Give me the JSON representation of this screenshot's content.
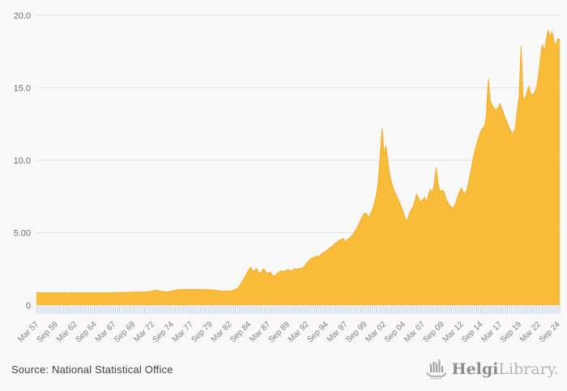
{
  "page": {
    "background": "#f9f9f9"
  },
  "footer": {
    "source_text": "Source: National Statistical Office",
    "logo": {
      "name_bold": "Helgi",
      "name_light": "Library.",
      "icon": "helgi-ship-bars-icon",
      "color": "#9b9b9b"
    }
  },
  "chart_data": {
    "type": "area",
    "title": "",
    "xlabel": "",
    "ylabel": "",
    "x_unit": "quarterly",
    "x_start": "Mar 1957",
    "x_end": "Dec 2024",
    "ylim": [
      0,
      20
    ],
    "grid": "horizontal",
    "legend": "none",
    "colors": {
      "area_fill": "#f9bc38",
      "area_edge": "#f5ab25",
      "gridline": "#e4e4e4",
      "baseline": "#dcdcdc",
      "quarter_tick": "#c8d2e6",
      "x_label": "#7d7d7d",
      "y_label": "#6e6e6e"
    },
    "y_ticks": [
      {
        "value": 0,
        "label": "0"
      },
      {
        "value": 5,
        "label": "5.00"
      },
      {
        "value": 10,
        "label": "10.0"
      },
      {
        "value": 15,
        "label": "15.0"
      },
      {
        "value": 20,
        "label": "20.0"
      }
    ],
    "x_tick_every_n_points": 10,
    "x_tick_labels": [
      "Mar 57",
      "Sep 59",
      "Mar 62",
      "Sep 64",
      "Mar 67",
      "Sep 69",
      "Mar 72",
      "Sep 74",
      "Mar 77",
      "Sep 79",
      "Mar 82",
      "Sep 84",
      "Mar 87",
      "Sep 89",
      "Mar 92",
      "Sep 94",
      "Mar 97",
      "Sep 99",
      "Mar 02",
      "Sep 04",
      "Mar 07",
      "Sep 09",
      "Mar 12",
      "Sep 14",
      "Mar 17",
      "Sep 19",
      "Mar 22",
      "Sep 24"
    ],
    "values": [
      0.85,
      0.85,
      0.85,
      0.86,
      0.85,
      0.84,
      0.85,
      0.85,
      0.86,
      0.85,
      0.85,
      0.84,
      0.85,
      0.86,
      0.85,
      0.85,
      0.84,
      0.85,
      0.85,
      0.86,
      0.85,
      0.85,
      0.86,
      0.85,
      0.84,
      0.85,
      0.86,
      0.85,
      0.85,
      0.86,
      0.85,
      0.84,
      0.85,
      0.85,
      0.86,
      0.86,
      0.85,
      0.85,
      0.86,
      0.86,
      0.87,
      0.87,
      0.88,
      0.88,
      0.88,
      0.88,
      0.89,
      0.89,
      0.88,
      0.89,
      0.9,
      0.9,
      0.89,
      0.9,
      0.9,
      0.91,
      0.9,
      0.91,
      0.92,
      0.95,
      1.0,
      1.02,
      1.03,
      1.0,
      0.97,
      0.95,
      0.93,
      0.92,
      0.93,
      0.95,
      0.97,
      1.0,
      1.04,
      1.07,
      1.08,
      1.07,
      1.08,
      1.08,
      1.07,
      1.08,
      1.08,
      1.09,
      1.08,
      1.08,
      1.07,
      1.08,
      1.08,
      1.07,
      1.07,
      1.06,
      1.06,
      1.05,
      1.04,
      1.02,
      1.0,
      0.98,
      0.97,
      0.96,
      0.97,
      0.97,
      0.98,
      0.99,
      1.02,
      1.08,
      1.15,
      1.3,
      1.5,
      1.72,
      1.95,
      2.2,
      2.45,
      2.62,
      2.3,
      2.42,
      2.52,
      2.28,
      2.2,
      2.42,
      2.48,
      2.25,
      2.15,
      2.3,
      2.1,
      1.97,
      2.1,
      2.22,
      2.32,
      2.38,
      2.3,
      2.36,
      2.45,
      2.4,
      2.35,
      2.45,
      2.52,
      2.48,
      2.55,
      2.5,
      2.6,
      2.7,
      2.9,
      3.05,
      3.18,
      3.25,
      3.3,
      3.42,
      3.3,
      3.45,
      3.58,
      3.65,
      3.72,
      3.85,
      3.95,
      4.05,
      4.15,
      4.28,
      4.38,
      4.48,
      4.55,
      4.6,
      4.35,
      4.5,
      4.65,
      4.72,
      4.9,
      5.1,
      5.3,
      5.6,
      5.9,
      6.15,
      6.37,
      6.3,
      6.0,
      6.3,
      6.6,
      7.0,
      7.6,
      8.5,
      10.2,
      12.2,
      10.4,
      11.0,
      9.9,
      8.9,
      8.4,
      8.0,
      7.7,
      7.4,
      7.1,
      6.8,
      6.4,
      6.0,
      5.75,
      6.3,
      6.55,
      6.75,
      7.2,
      7.65,
      7.35,
      7.1,
      7.25,
      7.45,
      7.15,
      7.55,
      8.0,
      7.7,
      8.3,
      9.5,
      8.4,
      7.8,
      7.95,
      7.85,
      7.4,
      7.1,
      6.9,
      6.75,
      6.72,
      7.0,
      7.4,
      7.76,
      8.1,
      7.8,
      7.65,
      8.0,
      8.6,
      9.2,
      10.0,
      10.6,
      11.1,
      11.55,
      11.95,
      12.2,
      12.3,
      13.0,
      15.6,
      14.1,
      13.8,
      13.6,
      13.45,
      13.6,
      13.9,
      13.55,
      13.2,
      12.85,
      12.5,
      12.2,
      11.95,
      11.8,
      12.2,
      13.4,
      14.4,
      17.9,
      14.3,
      14.2,
      14.7,
      15.1,
      14.6,
      14.45,
      14.7,
      15.0,
      15.8,
      17.0,
      18.0,
      17.4,
      18.3,
      19.0,
      18.4,
      18.9,
      18.2,
      17.9,
      18.4,
      18.3
    ]
  }
}
